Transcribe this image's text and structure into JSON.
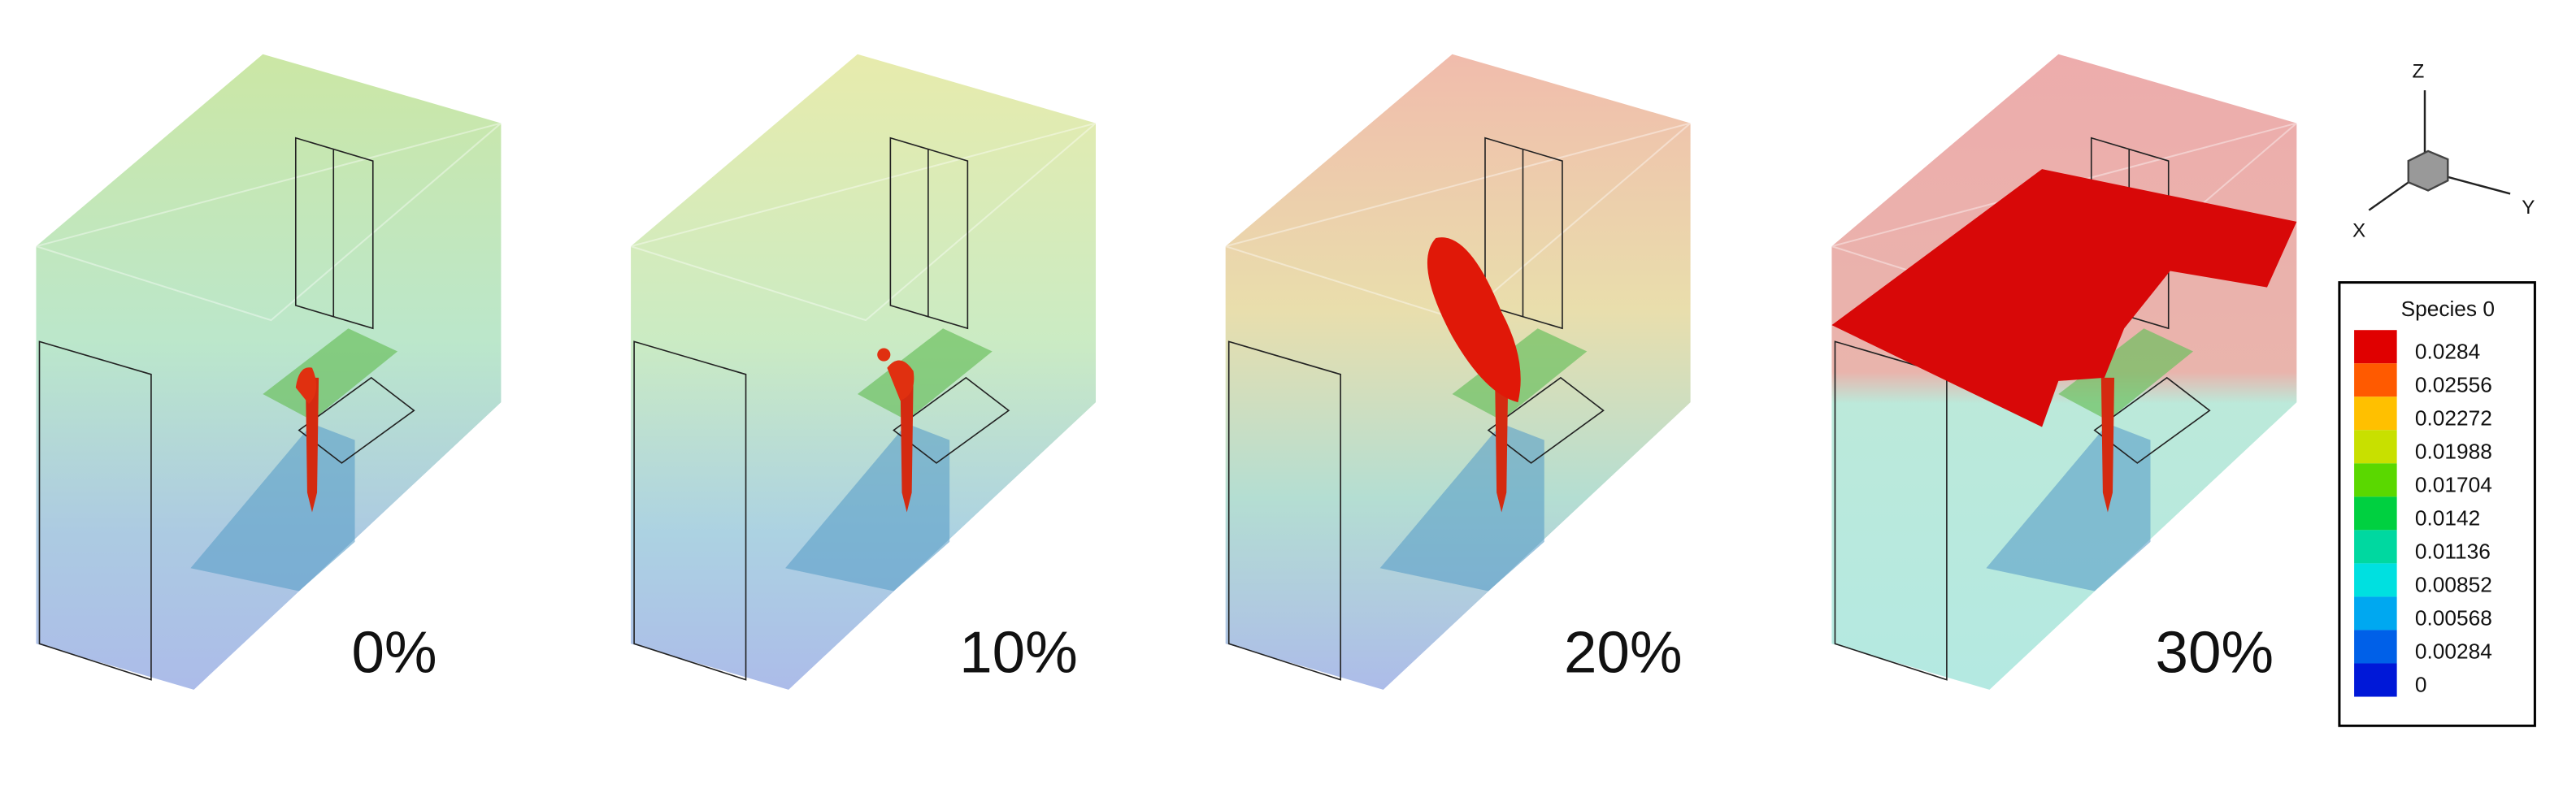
{
  "panels": [
    {
      "label": "0%"
    },
    {
      "label": "10%"
    },
    {
      "label": "20%"
    },
    {
      "label": "30%"
    }
  ],
  "axes": {
    "z": "Z",
    "x": "X",
    "y": "Y"
  },
  "legend": {
    "title": "Species 0",
    "entries": [
      {
        "label": "0.0284",
        "color": "#e00000"
      },
      {
        "label": "0.02556",
        "color": "#ff5a00"
      },
      {
        "label": "0.02272",
        "color": "#ffc000"
      },
      {
        "label": "0.01988",
        "color": "#c8e000"
      },
      {
        "label": "0.01704",
        "color": "#5ad800"
      },
      {
        "label": "0.0142",
        "color": "#00d040"
      },
      {
        "label": "0.01136",
        "color": "#00d8a0"
      },
      {
        "label": "0.00852",
        "color": "#00e0e0"
      },
      {
        "label": "0.00568",
        "color": "#00a8f0"
      },
      {
        "label": "0.00284",
        "color": "#0060e8"
      },
      {
        "label": "0",
        "color": "#0018d8"
      }
    ]
  }
}
